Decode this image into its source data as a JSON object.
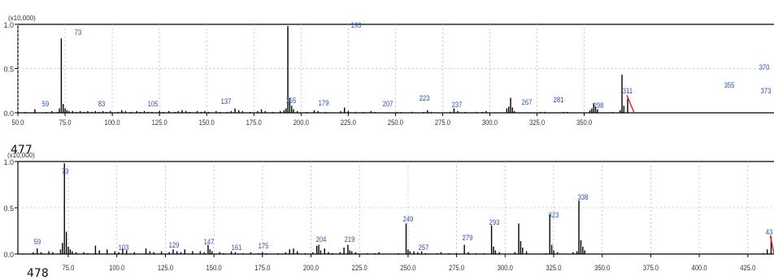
{
  "chart_data": [
    {
      "type": "bar",
      "panel_id": "477",
      "y_scale_label": "(x10,000)",
      "y_ticks": [
        "1.0",
        "0.5",
        "0.0"
      ],
      "xlim": [
        50,
        372
      ],
      "ylim": [
        0,
        1.0
      ],
      "grid": true,
      "x_ticks": [
        "50.0",
        "75.0",
        "100.0",
        "125.0",
        "150.0",
        "175.0",
        "200.0",
        "225.0",
        "250.0",
        "275.0",
        "300.0",
        "325.0",
        "350.0"
      ],
      "peak_labels": [
        "59",
        "73",
        "83",
        "105",
        "137",
        "165",
        "179",
        "193",
        "207",
        "223",
        "237",
        "267",
        "281",
        "298",
        "311",
        "355",
        "370",
        "373"
      ],
      "x": [
        54,
        59,
        65,
        68,
        71,
        72,
        73,
        74,
        75,
        76,
        77,
        79,
        81,
        83,
        85,
        87,
        89,
        91,
        93,
        95,
        97,
        99,
        103,
        105,
        107,
        110,
        113,
        115,
        117,
        119,
        121,
        125,
        127,
        130,
        133,
        135,
        137,
        139,
        141,
        145,
        147,
        149,
        151,
        155,
        157,
        161,
        163,
        165,
        167,
        169,
        173,
        177,
        179,
        181,
        185,
        189,
        191,
        192,
        193,
        194,
        195,
        196,
        198,
        203,
        207,
        209,
        213,
        221,
        223,
        225,
        229,
        233,
        237,
        239,
        251,
        253,
        259,
        265,
        267,
        269,
        279,
        281,
        283,
        287,
        293,
        296,
        298,
        309,
        310,
        311,
        312,
        313,
        327,
        329,
        339,
        341,
        353,
        354,
        355,
        356,
        357,
        365,
        369,
        370,
        371,
        373
      ],
      "values": [
        0.01,
        0.04,
        0.01,
        0.02,
        0.01,
        0.05,
        0.84,
        0.1,
        0.05,
        0.03,
        0.02,
        0.02,
        0.01,
        0.02,
        0.01,
        0.02,
        0.01,
        0.02,
        0.01,
        0.02,
        0.01,
        0.02,
        0.01,
        0.03,
        0.02,
        0.01,
        0.02,
        0.01,
        0.02,
        0.01,
        0.01,
        0.02,
        0.01,
        0.02,
        0.01,
        0.02,
        0.03,
        0.02,
        0.01,
        0.02,
        0.01,
        0.02,
        0.01,
        0.02,
        0.01,
        0.01,
        0.02,
        0.05,
        0.03,
        0.02,
        0.01,
        0.02,
        0.04,
        0.02,
        0.01,
        0.02,
        0.03,
        0.05,
        0.98,
        0.17,
        0.08,
        0.04,
        0.02,
        0.01,
        0.03,
        0.02,
        0.01,
        0.02,
        0.06,
        0.02,
        0.01,
        0.01,
        0.02,
        0.01,
        0.01,
        0.01,
        0.01,
        0.01,
        0.03,
        0.01,
        0.01,
        0.05,
        0.02,
        0.01,
        0.01,
        0.01,
        0.02,
        0.05,
        0.07,
        0.17,
        0.06,
        0.02,
        0.01,
        0.01,
        0.01,
        0.01,
        0.03,
        0.05,
        0.11,
        0.07,
        0.04,
        0.01,
        0.03,
        0.43,
        0.08,
        0.16
      ]
    },
    {
      "type": "bar",
      "panel_id": "478",
      "y_scale_label": "(x10,000)",
      "y_ticks": [
        "1.0",
        "0.5",
        "0.0"
      ],
      "xlim": [
        55,
        437
      ],
      "ylim": [
        0,
        1.0
      ],
      "grid": true,
      "x_ticks": [
        "75.0",
        "100.0",
        "125.0",
        "150.0",
        "175.0",
        "200.0",
        "225.0",
        "250.0",
        "275.0",
        "300.0",
        "325.0",
        "350.0",
        "375.0",
        "400.0",
        "425.0"
      ],
      "peak_labels": [
        "59",
        "73",
        "103",
        "129",
        "147",
        "161",
        "175",
        "204",
        "219",
        "249",
        "257",
        "279",
        "293",
        "323",
        "338",
        "43"
      ],
      "x": [
        57,
        59,
        61,
        65,
        67,
        71,
        72,
        73,
        74,
        75,
        76,
        77,
        79,
        83,
        85,
        89,
        91,
        95,
        99,
        101,
        103,
        105,
        109,
        115,
        117,
        119,
        123,
        127,
        129,
        131,
        133,
        135,
        139,
        143,
        145,
        147,
        148,
        149,
        153,
        155,
        159,
        161,
        165,
        169,
        173,
        175,
        177,
        183,
        187,
        189,
        191,
        193,
        197,
        201,
        203,
        204,
        205,
        207,
        209,
        211,
        215,
        217,
        219,
        220,
        221,
        223,
        229,
        233,
        235,
        245,
        249,
        250,
        251,
        253,
        255,
        257,
        259,
        265,
        267,
        271,
        275,
        279,
        281,
        285,
        289,
        293,
        294,
        295,
        297,
        305,
        307,
        308,
        309,
        311,
        321,
        323,
        324,
        325,
        327,
        335,
        337,
        338,
        339,
        340,
        341,
        433,
        435,
        437
      ],
      "values": [
        0.02,
        0.06,
        0.02,
        0.03,
        0.02,
        0.05,
        0.12,
        0.98,
        0.24,
        0.08,
        0.05,
        0.03,
        0.02,
        0.02,
        0.01,
        0.09,
        0.04,
        0.05,
        0.03,
        0.02,
        0.06,
        0.04,
        0.02,
        0.06,
        0.03,
        0.02,
        0.03,
        0.02,
        0.05,
        0.03,
        0.02,
        0.05,
        0.03,
        0.03,
        0.02,
        0.1,
        0.05,
        0.03,
        0.02,
        0.01,
        0.03,
        0.02,
        0.01,
        0.02,
        0.01,
        0.02,
        0.01,
        0.01,
        0.02,
        0.05,
        0.06,
        0.03,
        0.01,
        0.02,
        0.09,
        0.1,
        0.04,
        0.06,
        0.02,
        0.01,
        0.02,
        0.07,
        0.1,
        0.04,
        0.03,
        0.02,
        0.01,
        0.01,
        0.02,
        0.01,
        0.33,
        0.05,
        0.03,
        0.03,
        0.02,
        0.03,
        0.01,
        0.01,
        0.02,
        0.01,
        0.01,
        0.1,
        0.02,
        0.01,
        0.01,
        0.31,
        0.08,
        0.04,
        0.02,
        0.02,
        0.33,
        0.14,
        0.07,
        0.03,
        0.01,
        0.43,
        0.1,
        0.04,
        0.02,
        0.02,
        0.03,
        0.58,
        0.15,
        0.08,
        0.04,
        0.01,
        0.05,
        0.19
      ]
    }
  ]
}
